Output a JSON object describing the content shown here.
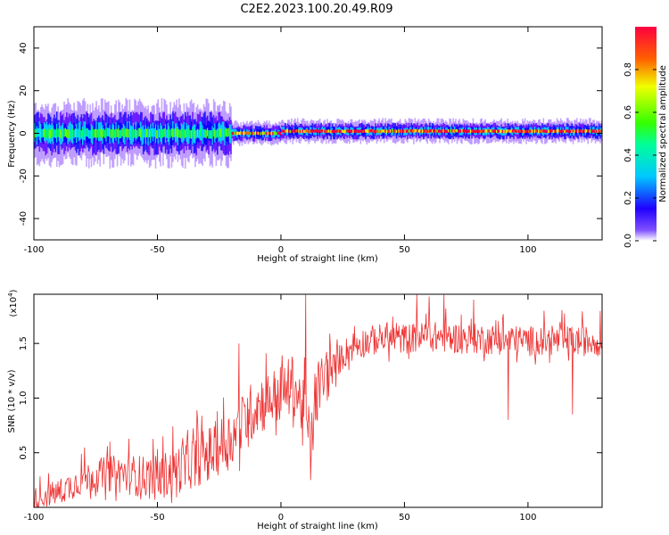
{
  "title": "C2E2.2023.100.20.49.R09",
  "chart_data": [
    {
      "type": "heatmap",
      "name": "spectrogram",
      "xlabel": "Height of straight line (km)",
      "ylabel": "Frequency (Hz)",
      "xlim": [
        -100,
        130
      ],
      "ylim": [
        -50,
        50
      ],
      "x_ticks": [
        -100,
        -50,
        0,
        50,
        100
      ],
      "y_ticks": [
        -40,
        -20,
        0,
        20,
        40
      ],
      "x_tick_labels": [
        "-100",
        "-50",
        "0",
        "50",
        "100"
      ],
      "y_tick_labels": [
        "-40",
        "-20",
        "0",
        "20",
        "40"
      ],
      "colorbar": {
        "label": "Normalized spectral amplitude",
        "range": [
          0,
          1
        ],
        "ticks": [
          0.0,
          0.2,
          0.4,
          0.6,
          0.8
        ],
        "tick_labels": [
          "0.0",
          "0.2",
          "0.4",
          "0.6",
          "0.8"
        ],
        "colormap": [
          "#ffffff",
          "#5a00ff",
          "#0000ff",
          "#00e5ff",
          "#00ff66",
          "#66ff00",
          "#ffee00",
          "#ff6600",
          "#ff0033"
        ]
      },
      "ridge": {
        "segments": [
          {
            "x": [
              -100,
              -20
            ],
            "center_hz": 0,
            "spread_hz": 8,
            "peak_amplitude": 0.5
          },
          {
            "x": [
              -20,
              0
            ],
            "center_hz": 0,
            "spread_hz": 3,
            "peak_amplitude": 0.8
          },
          {
            "x": [
              0,
              130
            ],
            "center_hz": 1,
            "spread_hz": 3,
            "peak_amplitude": 0.95
          }
        ]
      }
    },
    {
      "type": "line",
      "name": "snr",
      "xlabel": "Height of straight line (km)",
      "ylabel": "SNR (10 * v/v)",
      "y_multiplier_label": "(x10",
      "y_multiplier_exp": "4",
      "y_multiplier_close": ")",
      "xlim": [
        -100,
        130
      ],
      "ylim": [
        0.0,
        1.95
      ],
      "x_ticks": [
        -100,
        -50,
        0,
        50,
        100
      ],
      "y_ticks": [
        0.5,
        1.0,
        1.5
      ],
      "x_tick_labels": [
        "-100",
        "-50",
        "0",
        "50",
        "100"
      ],
      "y_tick_labels": [
        "0.5",
        "1.0",
        "1.5"
      ],
      "line_color": "#ee3333",
      "trend_points": [
        {
          "x": -100,
          "y": 0.05
        },
        {
          "x": -90,
          "y": 0.1
        },
        {
          "x": -80,
          "y": 0.22
        },
        {
          "x": -70,
          "y": 0.26
        },
        {
          "x": -60,
          "y": 0.24
        },
        {
          "x": -50,
          "y": 0.2
        },
        {
          "x": -40,
          "y": 0.3
        },
        {
          "x": -30,
          "y": 0.4
        },
        {
          "x": -20,
          "y": 0.55
        },
        {
          "x": -15,
          "y": 0.7
        },
        {
          "x": -10,
          "y": 0.85
        },
        {
          "x": -5,
          "y": 0.9
        },
        {
          "x": 0,
          "y": 0.95
        },
        {
          "x": 5,
          "y": 1.05
        },
        {
          "x": 10,
          "y": 0.75
        },
        {
          "x": 12,
          "y": 0.5
        },
        {
          "x": 15,
          "y": 1.0
        },
        {
          "x": 20,
          "y": 1.2
        },
        {
          "x": 25,
          "y": 1.35
        },
        {
          "x": 30,
          "y": 1.45
        },
        {
          "x": 40,
          "y": 1.5
        },
        {
          "x": 50,
          "y": 1.5
        },
        {
          "x": 60,
          "y": 1.52
        },
        {
          "x": 80,
          "y": 1.5
        },
        {
          "x": 100,
          "y": 1.48
        },
        {
          "x": 130,
          "y": 1.48
        }
      ],
      "spikes": [
        {
          "x": -17,
          "y": 1.5
        },
        {
          "x": 10,
          "y": 1.95
        },
        {
          "x": 12,
          "y": 0.25
        },
        {
          "x": 55,
          "y": 1.95
        },
        {
          "x": 60,
          "y": 1.93
        },
        {
          "x": 66,
          "y": 1.95
        },
        {
          "x": 78,
          "y": 1.9
        },
        {
          "x": 92,
          "y": 0.8
        },
        {
          "x": 118,
          "y": 0.85
        }
      ]
    }
  ]
}
